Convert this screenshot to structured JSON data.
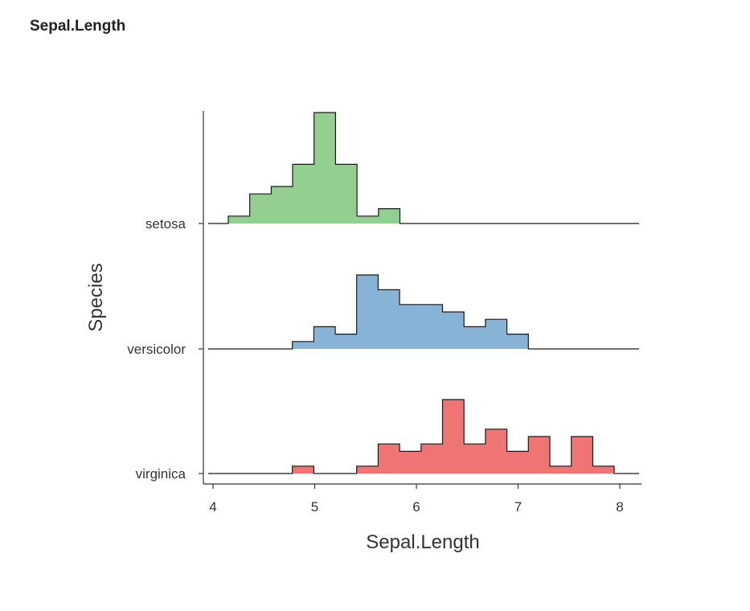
{
  "page": {
    "title": "Sepal.Length"
  },
  "chart_data": {
    "type": "ridgeline-histogram",
    "xlabel": "Sepal.Length",
    "ylabel": "Species",
    "xlim": [
      3.95,
      8.2
    ],
    "x_ticks": [
      "4",
      "5",
      "6",
      "7",
      "8"
    ],
    "bin_width": 0.211,
    "grid": false,
    "legend": "none",
    "series": [
      {
        "name": "setosa",
        "color": "#93CF8F",
        "x_start": 4.15,
        "counts": [
          1,
          4,
          5,
          8,
          15,
          8,
          1,
          2
        ]
      },
      {
        "name": "versicolor",
        "color": "#86B3D6",
        "x_start": 4.78,
        "counts": [
          1,
          3,
          2,
          10,
          8,
          6,
          6,
          5,
          3,
          4,
          2
        ]
      },
      {
        "name": "virginica",
        "color": "#EF7474",
        "x_start": 4.78,
        "counts": [
          1,
          0,
          0,
          1,
          4,
          3,
          4,
          10,
          4,
          6,
          3,
          5,
          1,
          5,
          1
        ]
      }
    ]
  }
}
